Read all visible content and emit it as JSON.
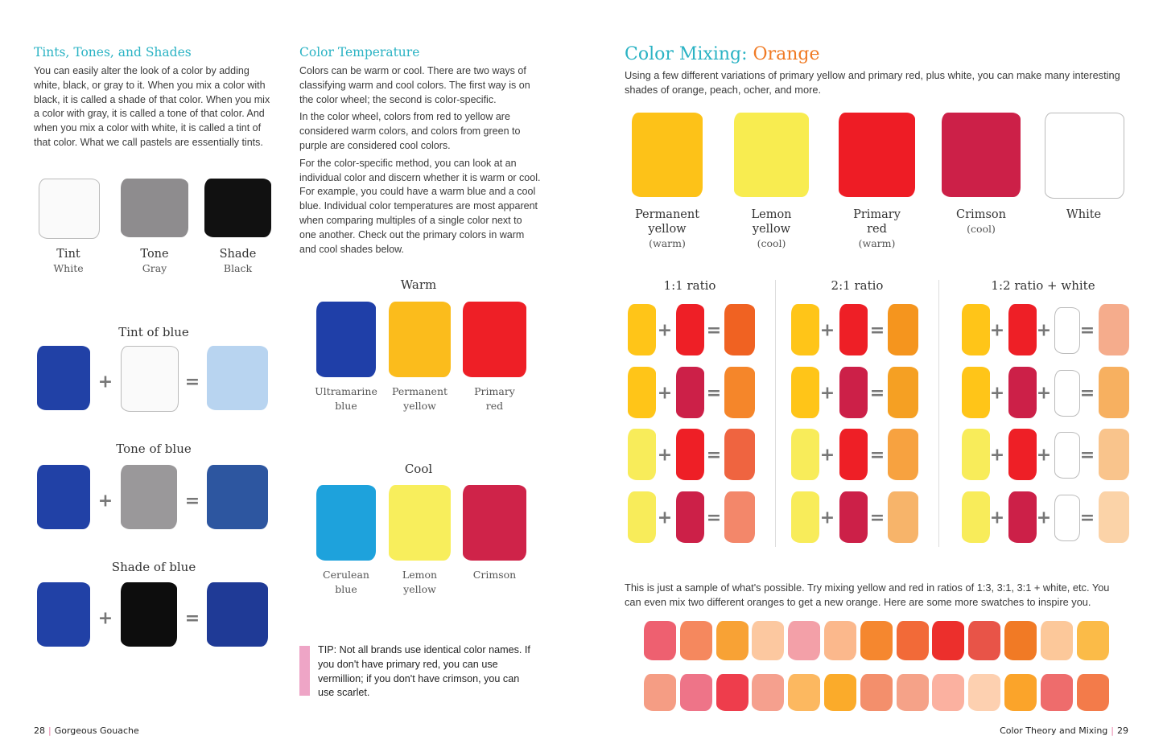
{
  "left": {
    "tints": {
      "title": "Tints, Tones, and Shades",
      "text": "You can easily alter the look of a color by adding white, black, or gray to it. When you mix a color with black, it is called a shade of that color. When you mix a color with gray, it is called a tone of that color. And when you mix a color with white, it is called a tint of that color. What we call pastels are essentially tints.",
      "swatches": [
        {
          "name": "Tint",
          "sub": "White",
          "color": "#fafafa"
        },
        {
          "name": "Tone",
          "sub": "Gray",
          "color": "#8e8c8e"
        },
        {
          "name": "Shade",
          "sub": "Black",
          "color": "#111111"
        }
      ]
    },
    "mixes": [
      {
        "title": "Tint of blue",
        "colors": [
          "#2141a6",
          "#fafafa",
          "#b8d4f0"
        ]
      },
      {
        "title": "Tone of blue",
        "colors": [
          "#2141a6",
          "#9a989a",
          "#2d56a0"
        ]
      },
      {
        "title": "Shade of blue",
        "colors": [
          "#2141a6",
          "#0d0d0d",
          "#1f3a96"
        ]
      }
    ],
    "plus": "+",
    "equals": "="
  },
  "middle": {
    "title": "Color Temperature",
    "paragraphs": [
      "Colors can be warm or cool. There are two ways of classifying warm and cool colors. The first way is on the color wheel; the second is color-specific.",
      "In the color wheel, colors from red to yellow are considered warm colors, and colors from green to purple are considered cool colors.",
      "For the color-specific method, you can look at an individual color and discern whether it is warm or cool. For example, you could have a warm blue and a cool blue. Individual color temperatures are most apparent when comparing multiples of a single color next to one another. Check out the primary colors in warm and cool shades below."
    ],
    "warm": {
      "title": "Warm",
      "swatches": [
        {
          "name": "Ultramarine",
          "sub": "blue",
          "color": "#1f3fa8"
        },
        {
          "name": "Permanent",
          "sub": "yellow",
          "color": "#fbbc1c"
        },
        {
          "name": "Primary",
          "sub": "red",
          "color": "#ee1f26"
        }
      ]
    },
    "cool": {
      "title": "Cool",
      "swatches": [
        {
          "name": "Cerulean",
          "sub": "blue",
          "color": "#1ea2dc"
        },
        {
          "name": "Lemon",
          "sub": "yellow",
          "color": "#f8ee5c"
        },
        {
          "name": "Crimson",
          "sub": "",
          "color": "#cf2349"
        }
      ]
    },
    "tip": {
      "label": "TIP:",
      "text": " Not all brands use identical color names. If you don't have primary red, you can use vermillion; if you don't have crimson, you can use scarlet.",
      "color": "#eea5c6"
    }
  },
  "right": {
    "title_a": "Color Mixing: ",
    "title_b": "Orange",
    "title_b_color": "#f07a24",
    "intro": "Using a few different variations of primary yellow and primary red, plus white, you can make many interesting shades of orange, peach, ocher, and more.",
    "paints": [
      {
        "name": "Permanent",
        "name2": "yellow",
        "sub": "(warm)",
        "color": "#fdc218"
      },
      {
        "name": "Lemon",
        "name2": "yellow",
        "sub": "(cool)",
        "color": "#f8ec50"
      },
      {
        "name": "Primary",
        "name2": "red",
        "sub": "(warm)",
        "color": "#ee1c25"
      },
      {
        "name": "Crimson",
        "name2": "",
        "sub": "(cool)",
        "color": "#cc2048"
      },
      {
        "name": "White",
        "name2": "",
        "sub": "",
        "color": "#ffffff"
      }
    ],
    "ratios": [
      {
        "title": "1:1 ratio",
        "rows": [
          [
            "#ffc518",
            "#ee1f26",
            "#f06222"
          ],
          [
            "#ffc518",
            "#cc2048",
            "#f5862a"
          ],
          [
            "#f8ec5a",
            "#ee1f26",
            "#ef6440"
          ],
          [
            "#f8ec5a",
            "#cc2048",
            "#f3876a"
          ]
        ]
      },
      {
        "title": "2:1 ratio",
        "rows": [
          [
            "#ffc518",
            "#ee1f26",
            "#f5951e"
          ],
          [
            "#ffc518",
            "#cc2048",
            "#f5a023"
          ],
          [
            "#f8ec5a",
            "#ee1f26",
            "#f7a240"
          ],
          [
            "#f8ec5a",
            "#cc2048",
            "#f7b46a"
          ]
        ]
      },
      {
        "title": "1:2 ratio + white",
        "rows": [
          [
            "#ffc518",
            "#ee1f26",
            "#ffffff",
            "#f5ac8c"
          ],
          [
            "#ffc518",
            "#cc2048",
            "#ffffff",
            "#f7b060"
          ],
          [
            "#f8ec5a",
            "#ee1f26",
            "#ffffff",
            "#f9c48c"
          ],
          [
            "#f8ec5a",
            "#cc2048",
            "#ffffff",
            "#fbd3a8"
          ]
        ]
      }
    ],
    "outro": "This is just a sample of what's possible. Try mixing yellow and red in ratios of 1:3, 3:1, 3:1 + white, etc. You can even mix two different oranges to get a new orange. Here are some more swatches to inspire you.",
    "swatch_rows": [
      [
        "#ee6070",
        "#f5885e",
        "#f8a235",
        "#fcc8a0",
        "#f3a0a8",
        "#fbb88c",
        "#f5872f",
        "#f26a38",
        "#ec2f2c",
        "#e85448",
        "#f17a25",
        "#fcc89a",
        "#fbbb48"
      ],
      [
        "#f59d84",
        "#ee7488",
        "#ee3d4c",
        "#f5a08e",
        "#fcb860",
        "#fbab2a",
        "#f38f6c",
        "#f5a288",
        "#fbb1a0",
        "#fdd0b0",
        "#fba42a",
        "#ee6c6c",
        "#f37b4a"
      ]
    ]
  },
  "footer": {
    "left_page": "28",
    "left_title": "Gorgeous Gouache",
    "right_title": "Color Theory and Mixing",
    "right_page": "29",
    "divider": "|"
  }
}
